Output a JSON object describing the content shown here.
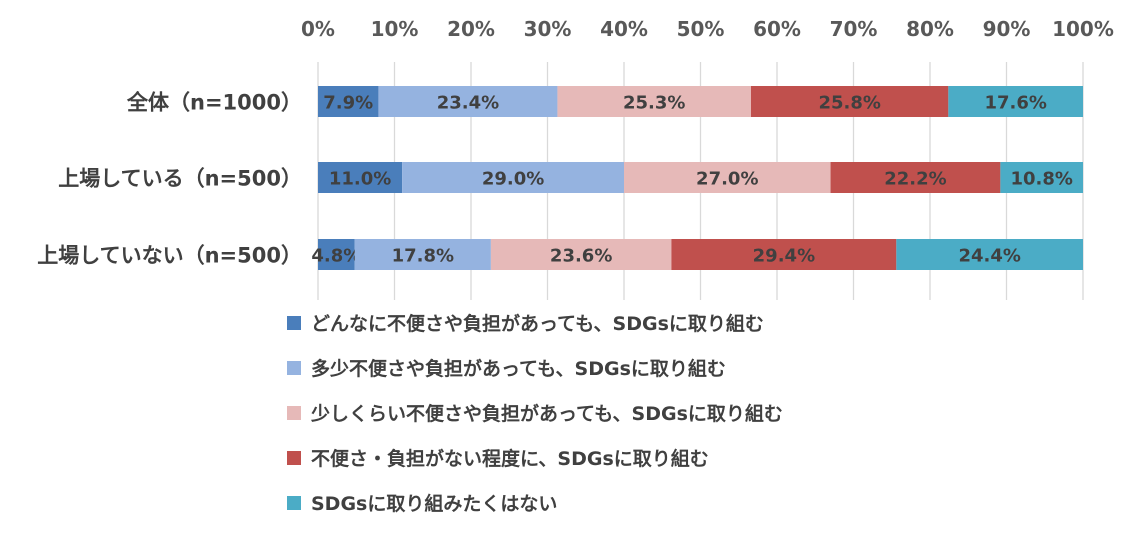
{
  "chart_data": {
    "type": "bar",
    "orientation": "horizontal",
    "stacked": true,
    "percent": true,
    "xlim": [
      0,
      100
    ],
    "x_ticks": [
      "0%",
      "10%",
      "20%",
      "30%",
      "40%",
      "50%",
      "60%",
      "70%",
      "80%",
      "90%",
      "100%"
    ],
    "x_tick_position": "top",
    "grid": true,
    "legend_position": "bottom",
    "categories": [
      "全体（n=1000）",
      "上場している（n=500）",
      "上場していない（n=500）"
    ],
    "series": [
      {
        "name": "どんなに不便さや負担があっても、SDGsに取り組む",
        "color": "#4a7ebb",
        "values": [
          7.9,
          11.0,
          4.8
        ],
        "labels": [
          "7.9%",
          "11.0%",
          "4.8%"
        ]
      },
      {
        "name": "多少不便さや負担があっても、SDGsに取り組む",
        "color": "#95b3e0",
        "values": [
          23.4,
          29.0,
          17.8
        ],
        "labels": [
          "23.4%",
          "29.0%",
          "17.8%"
        ]
      },
      {
        "name": "少しくらい不便さや負担があっても、SDGsに取り組む",
        "color": "#e6b9b8",
        "values": [
          25.3,
          27.0,
          23.6
        ],
        "labels": [
          "25.3%",
          "27.0%",
          "23.6%"
        ]
      },
      {
        "name": "不便さ・負担がない程度に、SDGsに取り組む",
        "color": "#c0504d",
        "values": [
          25.8,
          22.2,
          29.4
        ],
        "labels": [
          "25.8%",
          "22.2%",
          "29.4%"
        ]
      },
      {
        "name": "SDGsに取り組みたくはない",
        "color": "#4bacc6",
        "values": [
          17.6,
          10.8,
          24.4
        ],
        "labels": [
          "17.6%",
          "10.8%",
          "24.4%"
        ]
      }
    ]
  }
}
